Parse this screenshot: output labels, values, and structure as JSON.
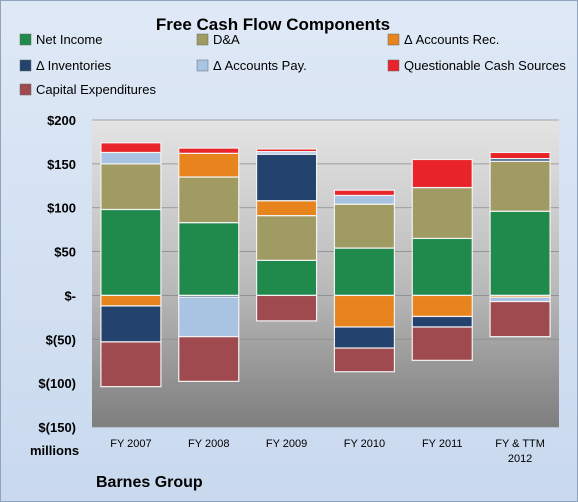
{
  "chart_data": {
    "type": "bar",
    "stacked": true,
    "title": "Free Cash Flow Components",
    "unit_label": "millions",
    "footer": "Barnes Group",
    "categories": [
      "FY 2007",
      "FY 2008",
      "FY 2009",
      "FY 2010",
      "FY 2011",
      "FY & TTM 2012"
    ],
    "series": [
      {
        "name": "Net Income",
        "color": "#1f8a4c",
        "values": [
          98,
          83,
          40,
          54,
          65,
          96
        ]
      },
      {
        "name": "D&A",
        "color": "#a09a63",
        "values": [
          52,
          52,
          51,
          50,
          58,
          57
        ]
      },
      {
        "name": "Δ Accounts Rec.",
        "color": "#e8841e",
        "values": [
          -12,
          27,
          17,
          -36,
          -24,
          -2
        ]
      },
      {
        "name": "Δ Inventories",
        "color": "#23426e",
        "values": [
          -41,
          -2,
          53,
          -24,
          -12,
          3
        ]
      },
      {
        "name": "Δ Accounts Pay.",
        "color": "#a9c3e3",
        "values": [
          13,
          -45,
          3,
          10,
          0,
          -5
        ]
      },
      {
        "name": "Questionable Cash Sources",
        "color": "#e8232a",
        "values": [
          11,
          6,
          3,
          6,
          32,
          7
        ]
      },
      {
        "name": "Capital Expenditures",
        "color": "#9e4a4e",
        "values": [
          -51,
          -51,
          -29,
          -27,
          -38,
          -40
        ]
      }
    ],
    "yticks": [
      "$200",
      "$150",
      "$100",
      "$50",
      "$-",
      "$(50)",
      "$(100)",
      "$(150)"
    ],
    "ylim": [
      -150,
      200
    ],
    "grid": true,
    "legend_position": "top"
  }
}
